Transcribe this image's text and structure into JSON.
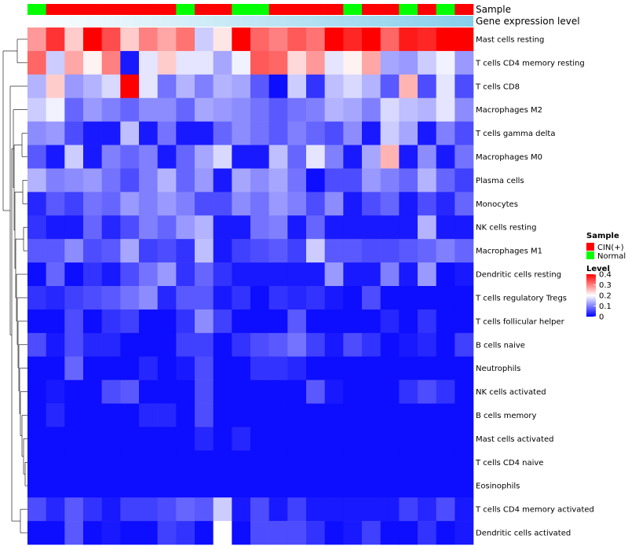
{
  "chart_data": {
    "type": "heatmap",
    "title": "",
    "annotations": {
      "sample_label": "Sample",
      "expression_label": "Gene expression level",
      "sample_groups": [
        "Normal",
        "CIN(+)",
        "CIN(+)",
        "CIN(+)",
        "CIN(+)",
        "CIN(+)",
        "CIN(+)",
        "CIN(+)",
        "Normal",
        "CIN(+)",
        "CIN(+)",
        "Normal",
        "Normal",
        "CIN(+)",
        "CIN(+)",
        "CIN(+)",
        "CIN(+)",
        "Normal",
        "CIN(+)",
        "CIN(+)",
        "Normal",
        "CIN(+)",
        "Normal",
        "CIN(+)"
      ],
      "expression_gradient": [
        0.0,
        1.0
      ]
    },
    "rows": [
      "Mast cells resting",
      "T cells CD4 memory resting",
      "T cells CD8",
      "Macrophages M2",
      "T cells gamma delta",
      "Macrophages M0",
      "Plasma cells",
      "Monocytes",
      "NK cells resting",
      "Macrophages M1",
      "Dendritic cells resting",
      "T cells regulatory  Tregs",
      "T cells follicular helper",
      "B cells naive",
      "Neutrophils",
      "NK cells activated",
      "B cells memory",
      "Mast cells activated",
      "T cells CD4 naive",
      "Eosinophils",
      "T cells CD4 memory activated",
      "Dendritic cells activated"
    ],
    "values": [
      [
        0.28,
        0.36,
        0.24,
        0.4,
        0.34,
        0.24,
        0.3,
        0.27,
        0.31,
        0.16,
        0.22,
        0.4,
        0.32,
        0.3,
        0.33,
        0.31,
        0.4,
        0.37,
        0.4,
        0.32,
        0.38,
        0.37,
        0.4,
        0.4
      ],
      [
        0.32,
        0.16,
        0.27,
        0.21,
        0.3,
        0.02,
        0.18,
        0.24,
        0.18,
        0.18,
        0.13,
        0.19,
        0.33,
        0.32,
        0.23,
        0.28,
        0.18,
        0.21,
        0.27,
        0.13,
        0.12,
        0.16,
        0.19,
        0.12
      ],
      [
        0.14,
        0.24,
        0.12,
        0.14,
        0.17,
        0.4,
        0.18,
        0.09,
        0.14,
        0.1,
        0.14,
        0.13,
        0.07,
        0.01,
        0.16,
        0.04,
        0.15,
        0.17,
        0.14,
        0.07,
        0.26,
        0.06,
        0.18,
        0.06
      ],
      [
        0.16,
        0.19,
        0.08,
        0.12,
        0.1,
        0.08,
        0.11,
        0.11,
        0.08,
        0.13,
        0.12,
        0.11,
        0.09,
        0.07,
        0.09,
        0.1,
        0.14,
        0.13,
        0.1,
        0.17,
        0.15,
        0.14,
        0.18,
        0.11
      ],
      [
        0.11,
        0.12,
        0.06,
        0.02,
        0.02,
        0.15,
        0.02,
        0.09,
        0.02,
        0.02,
        0.08,
        0.11,
        0.09,
        0.07,
        0.1,
        0.08,
        0.06,
        0.11,
        0.02,
        0.16,
        0.13,
        0.02,
        0.1,
        0.06
      ],
      [
        0.07,
        0.02,
        0.16,
        0.02,
        0.1,
        0.08,
        0.1,
        0.02,
        0.08,
        0.13,
        0.17,
        0.02,
        0.02,
        0.15,
        0.08,
        0.18,
        0.1,
        0.02,
        0.13,
        0.26,
        0.02,
        0.11,
        0.02,
        0.09
      ],
      [
        0.14,
        0.1,
        0.11,
        0.12,
        0.09,
        0.06,
        0.1,
        0.14,
        0.08,
        0.12,
        0.02,
        0.13,
        0.11,
        0.13,
        0.09,
        0.01,
        0.06,
        0.06,
        0.12,
        0.1,
        0.08,
        0.14,
        0.08,
        0.05
      ],
      [
        0.03,
        0.07,
        0.05,
        0.09,
        0.08,
        0.12,
        0.1,
        0.12,
        0.1,
        0.06,
        0.06,
        0.11,
        0.09,
        0.12,
        0.1,
        0.06,
        0.11,
        0.02,
        0.06,
        0.08,
        0.02,
        0.06,
        0.03,
        0.08
      ],
      [
        0.04,
        0.02,
        0.02,
        0.08,
        0.03,
        0.06,
        0.1,
        0.08,
        0.12,
        0.14,
        0.02,
        0.02,
        0.09,
        0.1,
        0.02,
        0.08,
        0.02,
        0.02,
        0.02,
        0.02,
        0.02,
        0.14,
        0.02,
        0.02
      ],
      [
        0.07,
        0.07,
        0.11,
        0.06,
        0.07,
        0.13,
        0.05,
        0.06,
        0.04,
        0.15,
        0.02,
        0.05,
        0.06,
        0.07,
        0.05,
        0.16,
        0.07,
        0.07,
        0.06,
        0.06,
        0.07,
        0.08,
        0.1,
        0.08
      ],
      [
        0.01,
        0.08,
        0.01,
        0.04,
        0.02,
        0.06,
        0.09,
        0.12,
        0.04,
        0.08,
        0.04,
        0.02,
        0.02,
        0.02,
        0.02,
        0.02,
        0.12,
        0.02,
        0.02,
        0.1,
        0.02,
        0.12,
        0.01,
        0.02
      ],
      [
        0.04,
        0.03,
        0.05,
        0.06,
        0.07,
        0.09,
        0.11,
        0.03,
        0.07,
        0.07,
        0.02,
        0.04,
        0.01,
        0.04,
        0.03,
        0.04,
        0.02,
        0.01,
        0.06,
        0.01,
        0.01,
        0.01,
        0.01,
        0.01
      ],
      [
        0.01,
        0.01,
        0.06,
        0.01,
        0.04,
        0.05,
        0.01,
        0.01,
        0.04,
        0.11,
        0.05,
        0.01,
        0.01,
        0.01,
        0.07,
        0.01,
        0.01,
        0.01,
        0.01,
        0.03,
        0.01,
        0.04,
        0.01,
        0.01
      ],
      [
        0.06,
        0.02,
        0.06,
        0.03,
        0.03,
        0.01,
        0.01,
        0.01,
        0.05,
        0.05,
        0.01,
        0.04,
        0.06,
        0.07,
        0.09,
        0.05,
        0.02,
        0.06,
        0.04,
        0.01,
        0.02,
        0.03,
        0.01,
        0.05
      ],
      [
        0.01,
        0.01,
        0.08,
        0.01,
        0.01,
        0.01,
        0.03,
        0.01,
        0.02,
        0.06,
        0.01,
        0.01,
        0.04,
        0.04,
        0.03,
        0.01,
        0.01,
        0.01,
        0.01,
        0.01,
        0.01,
        0.01,
        0.01,
        0.01
      ],
      [
        0.01,
        0.02,
        0.01,
        0.01,
        0.06,
        0.07,
        0.01,
        0.01,
        0.01,
        0.06,
        0.01,
        0.01,
        0.01,
        0.01,
        0.01,
        0.07,
        0.02,
        0.01,
        0.01,
        0.01,
        0.04,
        0.06,
        0.04,
        0.01
      ],
      [
        0.01,
        0.03,
        0.01,
        0.01,
        0.01,
        0.01,
        0.03,
        0.03,
        0.01,
        0.06,
        0.01,
        0.01,
        0.01,
        0.01,
        0.01,
        0.01,
        0.01,
        0.01,
        0.01,
        0.01,
        0.01,
        0.01,
        0.01,
        0.01
      ],
      [
        0.01,
        0.01,
        0.01,
        0.01,
        0.01,
        0.01,
        0.01,
        0.01,
        0.01,
        0.03,
        0.01,
        0.03,
        0.01,
        0.01,
        0.01,
        0.01,
        0.01,
        0.01,
        0.01,
        0.01,
        0.01,
        0.01,
        0.01,
        0.01
      ],
      [
        0.01,
        0.01,
        0.01,
        0.01,
        0.01,
        0.01,
        0.01,
        0.01,
        0.01,
        0.01,
        0.01,
        0.01,
        0.01,
        0.01,
        0.01,
        0.01,
        0.01,
        0.01,
        0.01,
        0.01,
        0.01,
        0.01,
        0.01,
        0.01
      ],
      [
        0.01,
        0.01,
        0.01,
        0.01,
        0.01,
        0.01,
        0.01,
        0.01,
        0.01,
        0.01,
        0.01,
        0.01,
        0.01,
        0.01,
        0.01,
        0.01,
        0.01,
        0.01,
        0.01,
        0.01,
        0.01,
        0.01,
        0.01,
        0.01
      ],
      [
        0.06,
        0.03,
        0.07,
        0.04,
        0.02,
        0.05,
        0.05,
        0.06,
        0.08,
        0.07,
        0.16,
        0.02,
        0.06,
        0.02,
        0.05,
        0.02,
        0.02,
        0.02,
        0.02,
        0.02,
        0.05,
        0.03,
        0.06,
        0.02
      ],
      [
        0.01,
        0.01,
        0.07,
        0.01,
        0.02,
        0.01,
        0.01,
        0.05,
        0.04,
        0.01,
        0.2,
        0.01,
        0.06,
        0.06,
        0.06,
        0.04,
        0.01,
        0.02,
        0.05,
        0.01,
        0.01,
        0.04,
        0.01,
        0.02
      ]
    ],
    "color_scale": {
      "min": 0,
      "mid": 0.2,
      "max": 0.4,
      "low": "#0000ff",
      "midcolor": "#ffffff",
      "high": "#ff0000"
    },
    "legend": {
      "sample_title": "Sample",
      "sample_items": [
        {
          "label": "CIN(+)",
          "color": "#ff0000"
        },
        {
          "label": "Normal",
          "color": "#00ff00"
        }
      ],
      "level_title": "Level",
      "level_ticks": [
        {
          "label": "0.4",
          "value": 0.4
        },
        {
          "label": "0.3",
          "value": 0.3
        },
        {
          "label": "0.2",
          "value": 0.2
        },
        {
          "label": "0.1",
          "value": 0.1
        },
        {
          "label": "0",
          "value": 0.0
        }
      ],
      "placement": "right"
    }
  }
}
